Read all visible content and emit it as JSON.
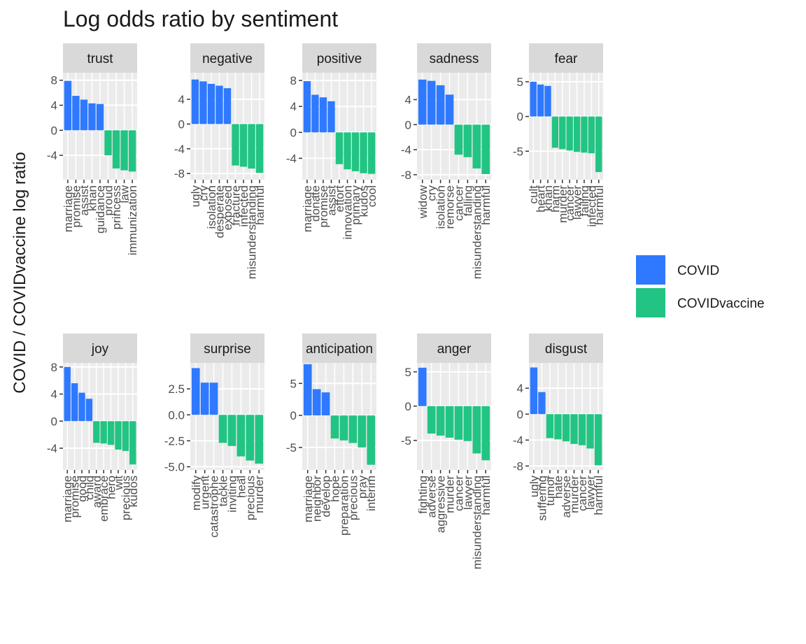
{
  "chart_data": {
    "type": "bar",
    "title": "Log odds ratio by sentiment",
    "ylabel": "COVID / COVIDvaccine log ratio",
    "series": [
      {
        "name": "COVID",
        "color": "#2e79ff"
      },
      {
        "name": "COVIDvaccine",
        "color": "#22c483"
      }
    ],
    "panels": [
      {
        "title": "trust",
        "categories": [
          "marriage",
          "promise",
          "assist",
          "khan",
          "guidance",
          "proud",
          "princess",
          "law",
          "immunization"
        ],
        "values": [
          7.9,
          5.5,
          4.9,
          4.3,
          4.2,
          -4.0,
          -6.1,
          -6.4,
          -6.6
        ],
        "ylim": [
          -7.9,
          9.2
        ],
        "yticks": [
          -4,
          0,
          4,
          8
        ]
      },
      {
        "title": "negative",
        "categories": [
          "ugly",
          "cry",
          "isolation",
          "desperate",
          "exposed",
          "fracture",
          "infected",
          "misunderstanding",
          "harmful"
        ],
        "values": [
          7.2,
          6.9,
          6.5,
          6.2,
          5.8,
          -6.7,
          -6.9,
          -7.2,
          -7.9
        ],
        "ylim": [
          -9.0,
          8.3
        ],
        "yticks": [
          -8,
          -4,
          0,
          4
        ]
      },
      {
        "title": "positive",
        "categories": [
          "marriage",
          "donate",
          "promise",
          "assist",
          "effort",
          "innovation",
          "primary",
          "kudos",
          "cool"
        ],
        "values": [
          7.9,
          5.8,
          5.4,
          4.8,
          -4.9,
          -5.7,
          -6.0,
          -6.3,
          -6.4
        ],
        "ylim": [
          -7.3,
          9.2
        ],
        "yticks": [
          -4,
          0,
          4,
          8
        ]
      },
      {
        "title": "sadness",
        "categories": [
          "widow",
          "cry",
          "isolation",
          "remorse",
          "cancer",
          "falling",
          "misunderstanding",
          "harmful"
        ],
        "values": [
          7.2,
          7.0,
          6.3,
          4.8,
          -4.8,
          -5.2,
          -7.0,
          -7.9
        ],
        "ylim": [
          -8.8,
          8.3
        ],
        "yticks": [
          -8,
          -4,
          0,
          4
        ]
      },
      {
        "title": "fear",
        "categories": [
          "cult",
          "heart",
          "khan",
          "harm",
          "murder",
          "cancer",
          "lawyer",
          "failing",
          "infected",
          "harmful"
        ],
        "values": [
          5.0,
          4.6,
          4.4,
          -4.5,
          -4.7,
          -4.9,
          -5.1,
          -5.2,
          -5.3,
          -8.0
        ],
        "ylim": [
          -9.1,
          6.3
        ],
        "yticks": [
          -5,
          0,
          5
        ]
      },
      {
        "title": "joy",
        "categories": [
          "marriage",
          "promise",
          "good",
          "child",
          "award",
          "embrace",
          "hero",
          "wit",
          "precious",
          "kudos"
        ],
        "values": [
          8.0,
          5.6,
          4.2,
          3.3,
          -3.2,
          -3.3,
          -3.5,
          -4.2,
          -4.4,
          -6.4
        ],
        "ylim": [
          -7.2,
          8.6
        ],
        "yticks": [
          -4,
          0,
          4,
          8
        ]
      },
      {
        "title": "surprise",
        "categories": [
          "modify",
          "urgent",
          "catastrophe",
          "tackle",
          "inviting",
          "heal",
          "precious",
          "murder"
        ],
        "values": [
          4.5,
          3.1,
          3.1,
          -2.7,
          -3.0,
          -4.0,
          -4.4,
          -4.7
        ],
        "ylim": [
          -5.3,
          5.0
        ],
        "yticks": [
          {
            "value": -5,
            "label": "-5.0"
          },
          {
            "value": -2.5,
            "label": "-2.5"
          },
          {
            "value": 0,
            "label": "0.0"
          },
          {
            "value": 2.5,
            "label": "2.5"
          }
        ]
      },
      {
        "title": "anticipation",
        "categories": [
          "marriage",
          "neighbor",
          "develop",
          "hope",
          "preparation",
          "precious",
          "pray",
          "interim"
        ],
        "values": [
          8.0,
          4.1,
          3.6,
          -3.6,
          -3.9,
          -4.3,
          -5.0,
          -7.7
        ],
        "ylim": [
          -8.5,
          8.2
        ],
        "yticks": [
          -5,
          0,
          5
        ]
      },
      {
        "title": "anger",
        "categories": [
          "fighting",
          "adverse",
          "aggressive",
          "murder",
          "cancer",
          "lawyer",
          "misunderstanding",
          "harmful"
        ],
        "values": [
          5.6,
          -4.0,
          -4.3,
          -4.6,
          -4.9,
          -5.1,
          -6.9,
          -7.9
        ],
        "ylim": [
          -9.3,
          6.3
        ],
        "yticks": [
          -5,
          0,
          5
        ]
      },
      {
        "title": "disgust",
        "categories": [
          "ugly",
          "suffering",
          "tumor",
          "hate",
          "adverse",
          "murder",
          "cancer",
          "lawyer",
          "harmful"
        ],
        "values": [
          7.2,
          3.4,
          -3.7,
          -3.9,
          -4.2,
          -4.6,
          -4.8,
          -5.3,
          -7.9
        ],
        "ylim": [
          -8.6,
          7.9
        ],
        "yticks": [
          -8,
          -4,
          0,
          4
        ]
      }
    ]
  }
}
